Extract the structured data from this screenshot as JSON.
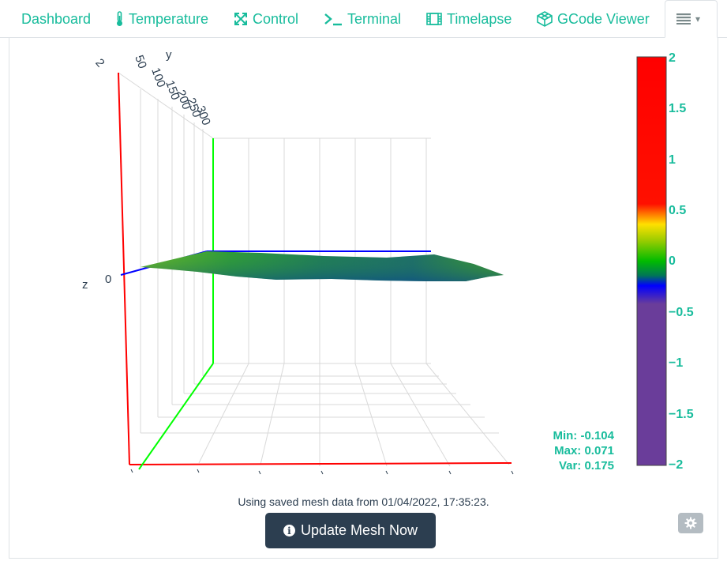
{
  "tabs": [
    {
      "label": "Dashboard",
      "icon": "none"
    },
    {
      "label": "Temperature",
      "icon": "thermometer-icon"
    },
    {
      "label": "Control",
      "icon": "arrows-icon"
    },
    {
      "label": "Terminal",
      "icon": "terminal-icon"
    },
    {
      "label": "Timelapse",
      "icon": "film-icon"
    },
    {
      "label": "GCode Viewer",
      "icon": "cube-icon"
    }
  ],
  "menu_tab": {
    "icon": "list-icon",
    "caret": "▾"
  },
  "plot": {
    "axis_y_label": "y",
    "axis_z_label": "z",
    "axis_x_label": "",
    "y_ticks": [
      "50",
      "100",
      "150",
      "200",
      "250",
      "300"
    ],
    "z_ticks": [
      "2",
      "0"
    ],
    "colorbar_ticks": [
      "2",
      "1.5",
      "1",
      "0.5",
      "0",
      "−0.5",
      "−1",
      "−1.5",
      "−2"
    ],
    "colors": {
      "x_axis": "#ff0000",
      "y_axis": "#00ff00",
      "z_axis": "#0000ff",
      "grid": "#d9d9d9",
      "accent": "#18bc9c"
    }
  },
  "chart_data": {
    "type": "surface",
    "title": "",
    "colorscale_range": [
      -2,
      2
    ],
    "colorscale_stops": [
      {
        "value": 2,
        "color": "#ff0000"
      },
      {
        "value": 0.5,
        "color": "#ff2000"
      },
      {
        "value": 0.35,
        "color": "#ffe000"
      },
      {
        "value": 0,
        "color": "#00cc00"
      },
      {
        "value": -0.3,
        "color": "#0000ff"
      },
      {
        "value": -0.5,
        "color": "#6a3d9a"
      },
      {
        "value": -2,
        "color": "#6a3d9a"
      }
    ],
    "z_min": -0.104,
    "z_max": 0.071
  },
  "stats": {
    "min": "Min: -0.104",
    "max": "Max: 0.071",
    "var": "Var: 0.175"
  },
  "status_text": "Using saved mesh data from 01/04/2022, 17:35:23.",
  "update_button": {
    "label": "Update Mesh Now",
    "icon": "info-circle-icon"
  },
  "settings_button": {
    "icon": "gear-icon"
  }
}
